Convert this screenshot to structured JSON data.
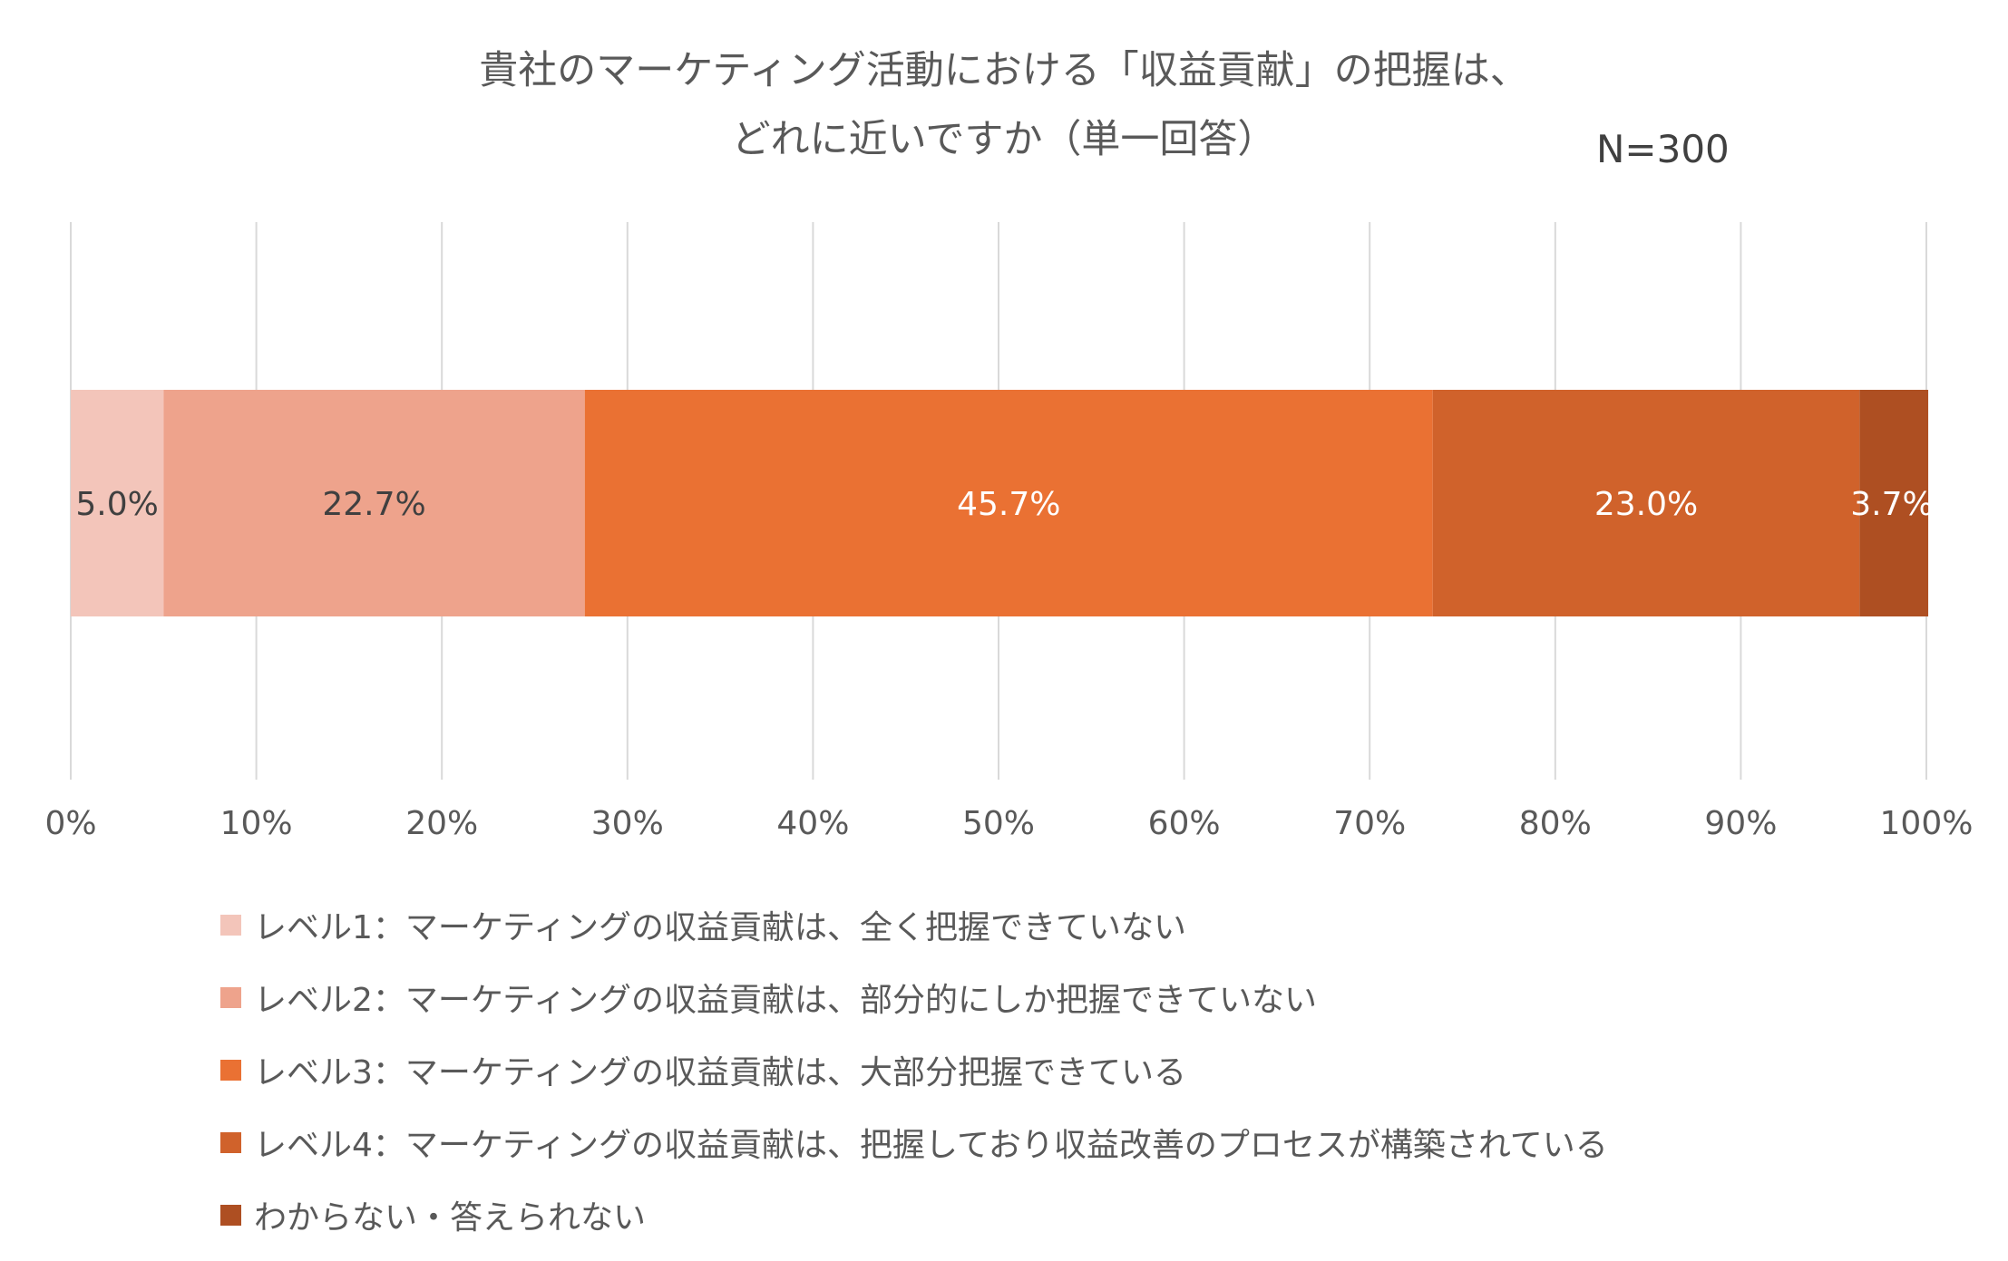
{
  "chart_data": {
    "type": "bar",
    "orientation": "horizontal",
    "stacked": true,
    "title_lines": [
      "貴社のマーケティング活動における「収益貢献」の把握は、",
      "どれに近いですか（単一回答）"
    ],
    "annotation": "N=300",
    "xlim": [
      0,
      100
    ],
    "x_ticks": [
      "0%",
      "10%",
      "20%",
      "30%",
      "40%",
      "50%",
      "60%",
      "70%",
      "80%",
      "90%",
      "100%"
    ],
    "x_tick_values": [
      0,
      10,
      20,
      30,
      40,
      50,
      60,
      70,
      80,
      90,
      100
    ],
    "grid": "vertical",
    "legend_position": "bottom",
    "series": [
      {
        "name": "レベル1：マーケティングの収益貢献は、全く把握できていない",
        "value": 5.0,
        "label": "5.0%",
        "color": "#F3C5BA",
        "label_color": "#404040"
      },
      {
        "name": "レベル2：マーケティングの収益貢献は、部分的にしか把握できていない",
        "value": 22.7,
        "label": "22.7%",
        "color": "#EEA38C",
        "label_color": "#404040"
      },
      {
        "name": "レベル3：マーケティングの収益貢献は、大部分把握できている",
        "value": 45.7,
        "label": "45.7%",
        "color": "#EA7133",
        "label_color": "#FFFFFF"
      },
      {
        "name": "レベル4：マーケティングの収益貢献は、把握しており収益改善のプロセスが構築されている",
        "value": 23.0,
        "label": "23.0%",
        "color": "#D0622B",
        "label_color": "#FFFFFF"
      },
      {
        "name": "わからない・答えられない",
        "value": 3.7,
        "label": "3.7%",
        "color": "#AE4F22",
        "label_color": "#FFFFFF"
      }
    ]
  }
}
